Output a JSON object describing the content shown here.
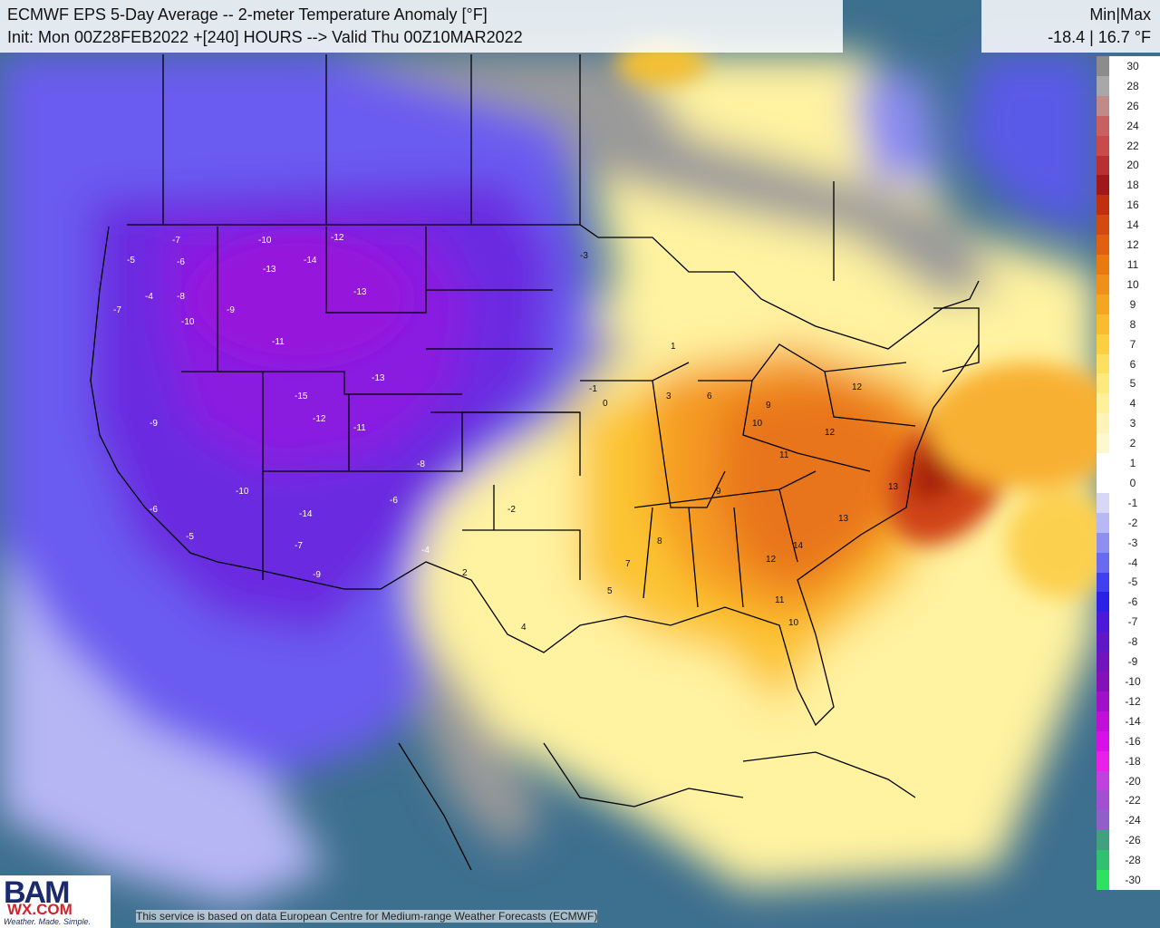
{
  "header": {
    "title": "ECMWF EPS 5-Day Average -- 2-meter Temperature Anomaly [°F]",
    "subtitle": "Init: Mon 00Z28FEB2022 +[240] HOURS --> Valid Thu 00Z10MAR2022"
  },
  "minmax": {
    "label": "Min|Max",
    "values": "-18.4 | 16.7 °F"
  },
  "legend": {
    "ticks": [
      "30",
      "28",
      "26",
      "24",
      "22",
      "20",
      "18",
      "16",
      "14",
      "12",
      "11",
      "10",
      "9",
      "8",
      "7",
      "6",
      "5",
      "4",
      "3",
      "2",
      "1",
      "0",
      "-1",
      "-2",
      "-3",
      "-4",
      "-5",
      "-6",
      "-7",
      "-8",
      "-9",
      "-10",
      "-12",
      "-14",
      "-16",
      "-18",
      "-20",
      "-22",
      "-24",
      "-26",
      "-28",
      "-30"
    ],
    "colors": [
      "#8c8c8c",
      "#a8a8a8",
      "#c08a8a",
      "#c86060",
      "#c84a4a",
      "#b83030",
      "#a01818",
      "#c03010",
      "#d24a10",
      "#e06010",
      "#ea7a10",
      "#f09018",
      "#f5a620",
      "#f8bc2c",
      "#fbd040",
      "#fde060",
      "#fee97c",
      "#fff09a",
      "#fff4b8",
      "#fff8cf",
      "#ffffff",
      "#ffffff",
      "#d8d8f6",
      "#b8b8f4",
      "#8f8ff2",
      "#6a6af0",
      "#4040ee",
      "#2a20e6",
      "#4a1ad8",
      "#5e18c8",
      "#7014bc",
      "#8410b8",
      "#a010c8",
      "#c010d8",
      "#d810e8",
      "#e820e8",
      "#c040e0",
      "#a050d0",
      "#9060c8",
      "#40a080",
      "#30c070",
      "#30e060"
    ]
  },
  "map_labels": {
    "west": [
      "-7",
      "-5",
      "-6",
      "-4",
      "-8",
      "-10",
      "-7",
      "-9",
      "-10",
      "-13",
      "-11",
      "-12",
      "-14",
      "-13",
      "-15",
      "-9",
      "-6",
      "-5",
      "-10",
      "-14",
      "-7",
      "-9",
      "-12",
      "-11",
      "-13",
      "-8",
      "-6",
      "-4"
    ],
    "east": [
      "9",
      "10",
      "11",
      "12",
      "13",
      "14",
      "12",
      "11",
      "10",
      "9",
      "8",
      "7",
      "6",
      "5",
      "4",
      "3",
      "2",
      "1",
      "0",
      "-1",
      "-2",
      "-3",
      "12",
      "13"
    ]
  },
  "logo": {
    "brand": "BAM",
    "site": "WX.COM",
    "tagline": "Weather. Made. Simple."
  },
  "attribution": "This service is based on data European Centre for Medium-range Weather Forecasts (ECMWF)"
}
